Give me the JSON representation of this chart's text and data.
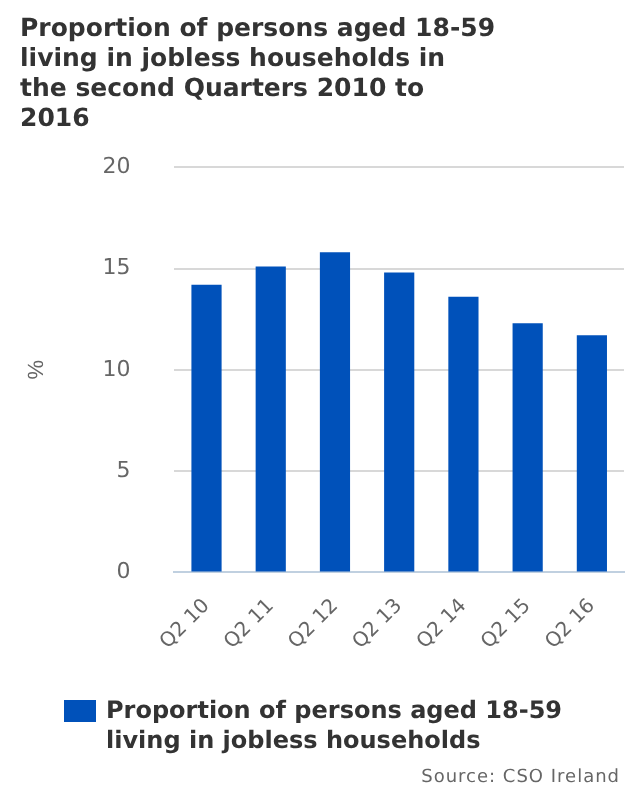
{
  "chart_data": {
    "type": "bar",
    "title": "Proportion of persons aged 18-59 living in jobless households in the second Quarters 2010 to 2016",
    "ylabel": "%",
    "categories": [
      "Q2 10",
      "Q2 11",
      "Q2 12",
      "Q2 13",
      "Q2 14",
      "Q2 15",
      "Q2 16"
    ],
    "series": [
      {
        "name": "Proportion of persons aged 18-59 living in jobless households",
        "color": "#0051ba",
        "values": [
          14.2,
          15.1,
          15.8,
          14.8,
          13.6,
          12.3,
          11.7
        ]
      }
    ],
    "ylim": [
      0,
      20
    ],
    "yticks": [
      0,
      5,
      10,
      15,
      20
    ],
    "grid": "y",
    "legend": "bottom",
    "annotations": [
      "Source: CSO Ireland"
    ]
  }
}
